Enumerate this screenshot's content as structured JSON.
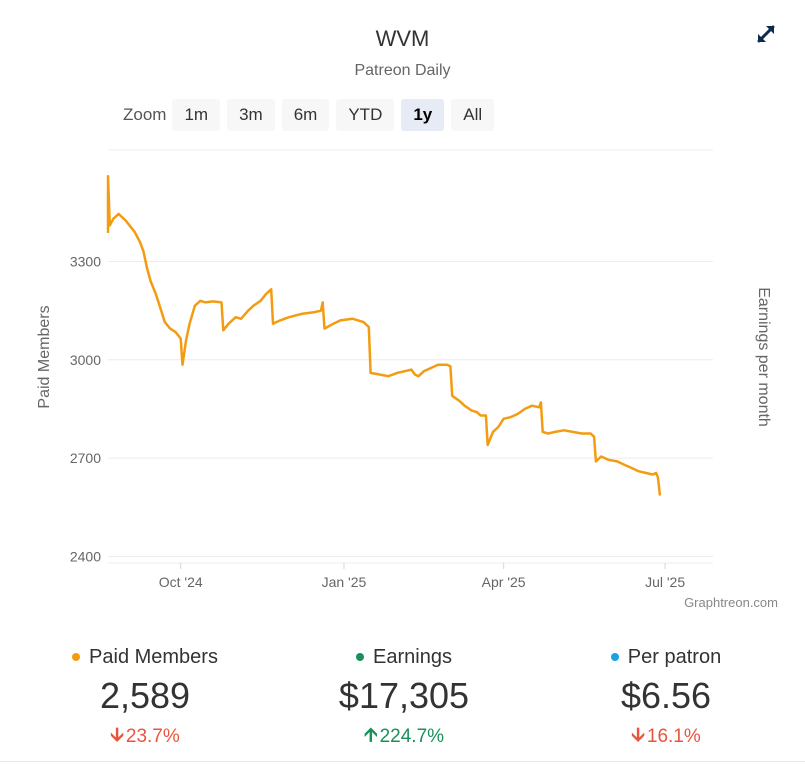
{
  "header": {
    "title": "WVM",
    "subtitle": "Patreon Daily"
  },
  "zoom": {
    "label": "Zoom",
    "buttons": [
      "1m",
      "3m",
      "6m",
      "YTD",
      "1y",
      "All"
    ],
    "active": "1y"
  },
  "credit": "Graphtreon.com",
  "icons": {
    "expand": "expand-arrows-icon"
  },
  "colors": {
    "members": "#f39c12",
    "earnings": "#1a8f5b",
    "per_patron": "#1ba1e2",
    "down": "#e8553e",
    "up": "#1a8f5b",
    "expand_icon": "#0d2a4f"
  },
  "chart_data": {
    "type": "line",
    "ylabel": "Paid Members",
    "y2label": "Earnings per month",
    "ylim": [
      2380,
      3640
    ],
    "yticks": [
      2400,
      2700,
      3000,
      3300
    ],
    "xlim": [
      "2024-08-21",
      "2025-07-28"
    ],
    "xticks": [
      {
        "date": "2024-10-01",
        "label": "Oct '24"
      },
      {
        "date": "2025-01-01",
        "label": "Jan '25"
      },
      {
        "date": "2025-04-01",
        "label": "Apr '25"
      },
      {
        "date": "2025-07-01",
        "label": "Jul '25"
      }
    ],
    "grid": true,
    "series": [
      {
        "name": "Paid Members",
        "points": [
          [
            "2024-08-21",
            3390
          ],
          [
            "2024-08-21",
            3560
          ],
          [
            "2024-08-22",
            3410
          ],
          [
            "2024-08-24",
            3430
          ],
          [
            "2024-08-27",
            3445
          ],
          [
            "2024-08-31",
            3425
          ],
          [
            "2024-09-05",
            3390
          ],
          [
            "2024-09-08",
            3360
          ],
          [
            "2024-09-10",
            3330
          ],
          [
            "2024-09-12",
            3280
          ],
          [
            "2024-09-14",
            3240
          ],
          [
            "2024-09-17",
            3200
          ],
          [
            "2024-09-20",
            3150
          ],
          [
            "2024-09-22",
            3115
          ],
          [
            "2024-09-25",
            3095
          ],
          [
            "2024-09-28",
            3085
          ],
          [
            "2024-10-01",
            3065
          ],
          [
            "2024-10-02",
            2985
          ],
          [
            "2024-10-04",
            3060
          ],
          [
            "2024-10-06",
            3110
          ],
          [
            "2024-10-09",
            3165
          ],
          [
            "2024-10-12",
            3180
          ],
          [
            "2024-10-15",
            3175
          ],
          [
            "2024-10-19",
            3178
          ],
          [
            "2024-10-24",
            3175
          ],
          [
            "2024-10-25",
            3090
          ],
          [
            "2024-10-28",
            3110
          ],
          [
            "2024-11-01",
            3130
          ],
          [
            "2024-11-04",
            3125
          ],
          [
            "2024-11-08",
            3150
          ],
          [
            "2024-11-11",
            3165
          ],
          [
            "2024-11-15",
            3180
          ],
          [
            "2024-11-18",
            3200
          ],
          [
            "2024-11-21",
            3215
          ],
          [
            "2024-11-22",
            3110
          ],
          [
            "2024-11-26",
            3120
          ],
          [
            "2024-12-01",
            3130
          ],
          [
            "2024-12-08",
            3140
          ],
          [
            "2024-12-15",
            3145
          ],
          [
            "2024-12-19",
            3150
          ],
          [
            "2024-12-20",
            3175
          ],
          [
            "2024-12-21",
            3095
          ],
          [
            "2024-12-26",
            3110
          ],
          [
            "2024-12-30",
            3120
          ],
          [
            "2025-01-06",
            3125
          ],
          [
            "2025-01-12",
            3115
          ],
          [
            "2025-01-15",
            3100
          ],
          [
            "2025-01-16",
            2960
          ],
          [
            "2025-01-21",
            2955
          ],
          [
            "2025-01-26",
            2950
          ],
          [
            "2025-01-31",
            2960
          ],
          [
            "2025-02-04",
            2965
          ],
          [
            "2025-02-08",
            2970
          ],
          [
            "2025-02-10",
            2955
          ],
          [
            "2025-02-12",
            2950
          ],
          [
            "2025-02-15",
            2965
          ],
          [
            "2025-02-19",
            2975
          ],
          [
            "2025-02-23",
            2985
          ],
          [
            "2025-02-28",
            2985
          ],
          [
            "2025-03-02",
            2980
          ],
          [
            "2025-03-03",
            2890
          ],
          [
            "2025-03-07",
            2875
          ],
          [
            "2025-03-10",
            2860
          ],
          [
            "2025-03-14",
            2845
          ],
          [
            "2025-03-17",
            2840
          ],
          [
            "2025-03-19",
            2830
          ],
          [
            "2025-03-22",
            2830
          ],
          [
            "2025-03-23",
            2740
          ],
          [
            "2025-03-26",
            2780
          ],
          [
            "2025-03-29",
            2795
          ],
          [
            "2025-04-01",
            2820
          ],
          [
            "2025-04-05",
            2825
          ],
          [
            "2025-04-09",
            2835
          ],
          [
            "2025-04-13",
            2850
          ],
          [
            "2025-04-17",
            2860
          ],
          [
            "2025-04-21",
            2855
          ],
          [
            "2025-04-22",
            2870
          ],
          [
            "2025-04-23",
            2780
          ],
          [
            "2025-04-26",
            2775
          ],
          [
            "2025-04-30",
            2780
          ],
          [
            "2025-05-05",
            2785
          ],
          [
            "2025-05-10",
            2780
          ],
          [
            "2025-05-15",
            2775
          ],
          [
            "2025-05-20",
            2775
          ],
          [
            "2025-05-22",
            2765
          ],
          [
            "2025-05-23",
            2690
          ],
          [
            "2025-05-26",
            2705
          ],
          [
            "2025-05-30",
            2695
          ],
          [
            "2025-06-04",
            2690
          ],
          [
            "2025-06-08",
            2680
          ],
          [
            "2025-06-12",
            2670
          ],
          [
            "2025-06-16",
            2660
          ],
          [
            "2025-06-20",
            2655
          ],
          [
            "2025-06-24",
            2650
          ],
          [
            "2025-06-26",
            2655
          ],
          [
            "2025-06-27",
            2640
          ],
          [
            "2025-06-28",
            2589
          ]
        ]
      }
    ]
  },
  "stats": [
    {
      "name": "Paid Members",
      "value": "2,589",
      "change": "23.7%",
      "direction": "down",
      "dot_color": "#f39c12"
    },
    {
      "name": "Earnings",
      "value": "$17,305",
      "change": "224.7%",
      "direction": "up",
      "dot_color": "#1a8f5b"
    },
    {
      "name": "Per patron",
      "value": "$6.56",
      "change": "16.1%",
      "direction": "down",
      "dot_color": "#1ba1e2"
    }
  ]
}
